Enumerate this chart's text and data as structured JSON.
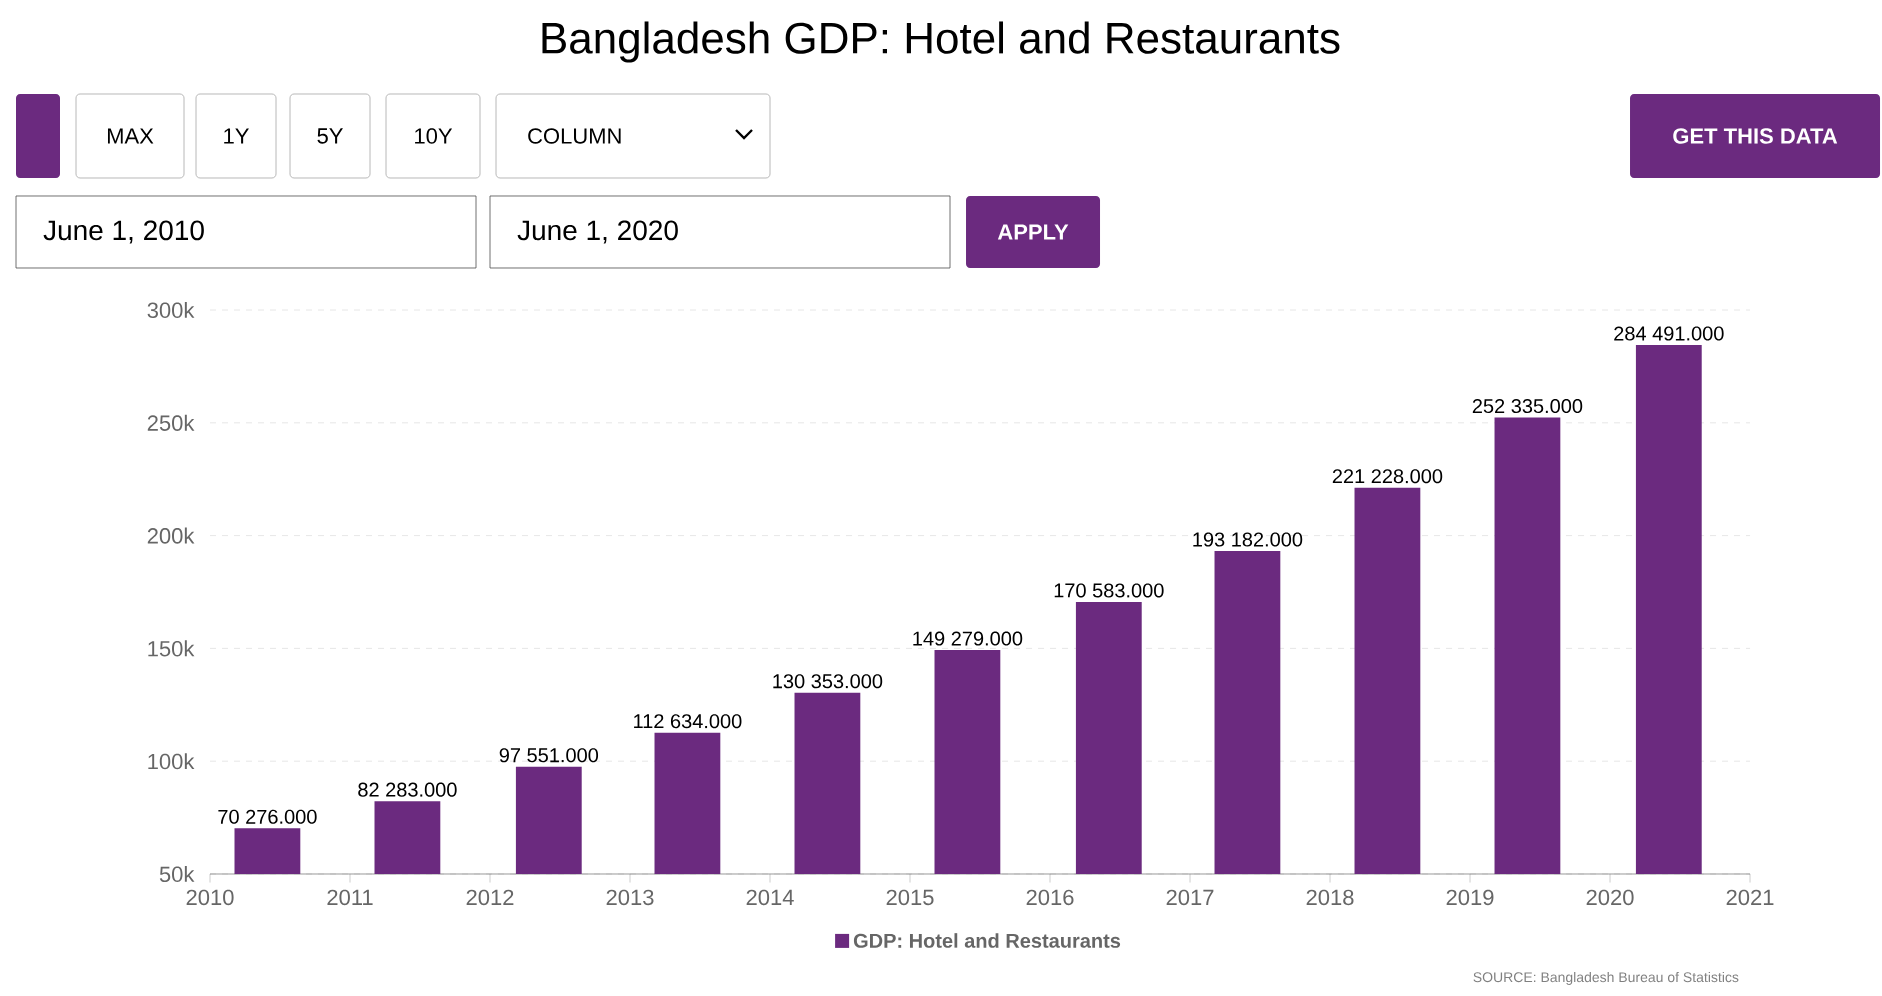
{
  "chart_data": {
    "type": "bar",
    "title": "Bangladesh GDP: Hotel and Restaurants",
    "x": [
      "2010-06-01",
      "2011-06-01",
      "2012-06-01",
      "2013-06-01",
      "2014-06-01",
      "2015-06-01",
      "2016-06-01",
      "2017-06-01",
      "2018-06-01",
      "2019-06-01",
      "2020-06-01"
    ],
    "series": [
      {
        "name": "GDP: Hotel and Restaurants",
        "color": "#6b2a7f",
        "values": [
          70276,
          82283,
          97551,
          112634,
          130353,
          149279,
          170583,
          193182,
          221228,
          252335,
          284491
        ],
        "value_labels": [
          "70 276.000",
          "82 283.000",
          "97 551.000",
          "112 634.000",
          "130 353.000",
          "149 279.000",
          "170 583.000",
          "193 182.000",
          "221 228.000",
          "252 335.000",
          "284 491.000"
        ]
      }
    ],
    "xlim": [
      "2010",
      "2021"
    ],
    "xticks": [
      "2010",
      "2011",
      "2012",
      "2013",
      "2014",
      "2015",
      "2016",
      "2017",
      "2018",
      "2019",
      "2020",
      "2021"
    ],
    "ylim": [
      50000,
      300000
    ],
    "yticks": [
      {
        "value": 50000,
        "label": "50k"
      },
      {
        "value": 100000,
        "label": "100k"
      },
      {
        "value": 150000,
        "label": "150k"
      },
      {
        "value": 200000,
        "label": "200k"
      },
      {
        "value": 250000,
        "label": "250k"
      },
      {
        "value": 300000,
        "label": "300k"
      }
    ],
    "grid": "y",
    "legend": "bottom",
    "annotations": [
      "MAX",
      "1Y",
      "5Y",
      "10Y",
      "COLUMN",
      "GET THIS DATA",
      "June 1, 2010",
      "June 1, 2020",
      "APPLY",
      "SOURCE: Bangladesh Bureau of Statistics"
    ]
  }
}
